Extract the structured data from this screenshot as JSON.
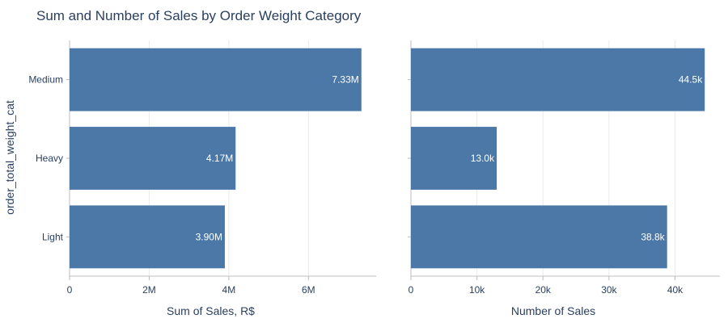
{
  "chart_data": {
    "type": "bar",
    "orientation": "horizontal",
    "title": "Sum and Number of Sales by Order Weight Category",
    "ylabel": "order_total_weight_cat",
    "categories": [
      "Medium",
      "Heavy",
      "Light"
    ],
    "bar_color": "#4c78a8",
    "panels": [
      {
        "xlabel": "Sum of Sales, R$",
        "values": [
          7330000,
          4170000,
          3900000
        ],
        "labels": [
          "7.33M",
          "4.17M",
          "3.90M"
        ],
        "xlim": [
          0,
          7700000
        ],
        "ticks": [
          0,
          2000000,
          4000000,
          6000000
        ],
        "tick_labels": [
          "0",
          "2M",
          "4M",
          "6M"
        ]
      },
      {
        "xlabel": "Number of Sales",
        "values": [
          44500,
          13000,
          38800
        ],
        "labels": [
          "44.5k",
          "13.0k",
          "38.8k"
        ],
        "xlim": [
          0,
          46800
        ],
        "ticks": [
          0,
          10000,
          20000,
          30000,
          40000
        ],
        "tick_labels": [
          "0",
          "10k",
          "20k",
          "30k",
          "40k"
        ]
      }
    ],
    "grid": true,
    "legend": "none"
  }
}
